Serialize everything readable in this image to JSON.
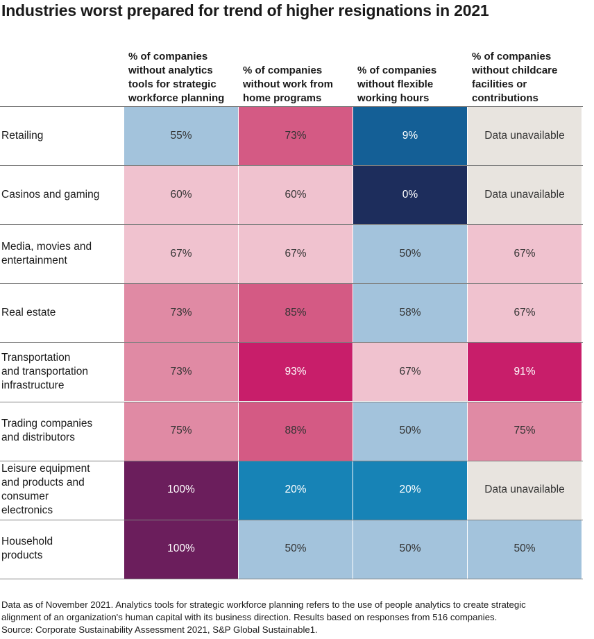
{
  "chart_data": {
    "type": "table",
    "title": "Industries worst prepared for trend of higher resignations in 2021",
    "columns": [
      "% of companies without analytics tools for strategic workforce planning",
      "% of companies without work from home programs",
      "% of companies without flexible working hours",
      "% of companies without childcare facilities or contributions"
    ],
    "column_lines": [
      [
        "% of companies",
        "without analytics",
        "tools for strategic",
        "workforce planning"
      ],
      [
        "% of companies",
        "without work from",
        "home programs"
      ],
      [
        "% of companies",
        "without flexible",
        "working hours"
      ],
      [
        "% of companies",
        "without childcare",
        "facilities or",
        "contributions"
      ]
    ],
    "rows": [
      {
        "label": "Retailing",
        "label_lines": [
          "Retailing"
        ],
        "values": [
          "55%",
          "73%",
          "9%",
          "Data unavailable"
        ]
      },
      {
        "label": "Casinos and gaming",
        "label_lines": [
          "Casinos and gaming"
        ],
        "values": [
          "60%",
          "60%",
          "0%",
          "Data unavailable"
        ]
      },
      {
        "label": "Media, movies and entertainment",
        "label_lines": [
          "Media, movies and",
          "entertainment"
        ],
        "values": [
          "67%",
          "67%",
          "50%",
          "67%"
        ]
      },
      {
        "label": "Real estate",
        "label_lines": [
          "Real estate"
        ],
        "values": [
          "73%",
          "85%",
          "58%",
          "67%"
        ]
      },
      {
        "label": "Transportation and transportation infrastructure",
        "label_lines": [
          "Transportation",
          "and transportation",
          "infrastructure"
        ],
        "values": [
          "73%",
          "93%",
          "67%",
          "91%"
        ]
      },
      {
        "label": "Trading companies and distributors",
        "label_lines": [
          "Trading companies",
          "and distributors"
        ],
        "values": [
          "75%",
          "88%",
          "50%",
          "75%"
        ]
      },
      {
        "label": "Leisure equipment and products and consumer electronics",
        "label_lines": [
          "Leisure equipment",
          "and products and",
          "consumer",
          "electronics"
        ],
        "values": [
          "100%",
          "20%",
          "20%",
          "Data unavailable"
        ]
      },
      {
        "label": "Household products",
        "label_lines": [
          "Household",
          "products"
        ],
        "values": [
          "100%",
          "50%",
          "50%",
          "50%"
        ]
      }
    ],
    "cell_colors": [
      [
        "#a3c3dc",
        "#d45a84",
        "#145f96",
        "#e8e4df"
      ],
      [
        "#f0c2cf",
        "#f0c2cf",
        "#1d2d5c",
        "#e8e4df"
      ],
      [
        "#f0c2cf",
        "#f0c2cf",
        "#a3c3dc",
        "#f0c2cf"
      ],
      [
        "#e08aa4",
        "#d45a84",
        "#a3c3dc",
        "#f0c2cf"
      ],
      [
        "#e08aa4",
        "#c81e6a",
        "#f0c2cf",
        "#c81e6a"
      ],
      [
        "#e08aa4",
        "#d45a84",
        "#a3c3dc",
        "#e08aa4"
      ],
      [
        "#6b1e5c",
        "#1783b6",
        "#1783b6",
        "#e8e4df"
      ],
      [
        "#6b1e5c",
        "#a3c3dc",
        "#a3c3dc",
        "#a3c3dc"
      ]
    ],
    "text_colors": [
      [
        "#333333",
        "#333333",
        "#ffffff",
        "#333333"
      ],
      [
        "#333333",
        "#333333",
        "#ffffff",
        "#333333"
      ],
      [
        "#333333",
        "#333333",
        "#333333",
        "#333333"
      ],
      [
        "#333333",
        "#333333",
        "#333333",
        "#333333"
      ],
      [
        "#333333",
        "#ffffff",
        "#333333",
        "#ffffff"
      ],
      [
        "#333333",
        "#333333",
        "#333333",
        "#333333"
      ],
      [
        "#ffffff",
        "#ffffff",
        "#ffffff",
        "#333333"
      ],
      [
        "#ffffff",
        "#333333",
        "#333333",
        "#333333"
      ]
    ]
  },
  "footnote": {
    "lines": [
      "Data as of November 2021. Analytics tools for strategic workforce planning refers to the use of people analytics to create strategic",
      "alignment of an organization's human capital with its business direction. Results based on responses from 516 companies.",
      "Source: Corporate Sustainability Assessment 2021, S&P Global Sustainable1."
    ]
  }
}
